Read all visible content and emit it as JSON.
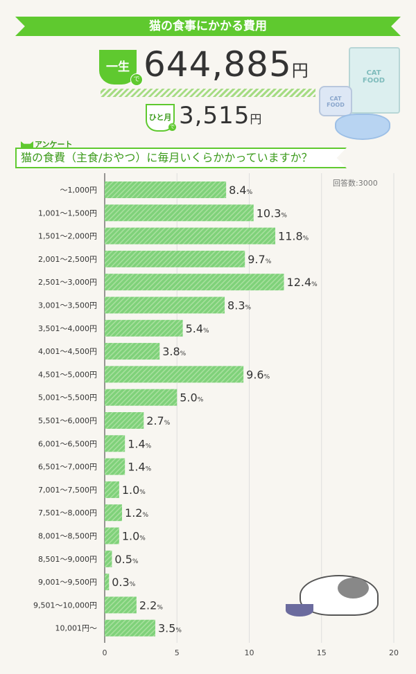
{
  "header": {
    "title": "猫の食事にかかる費用"
  },
  "lifetime": {
    "badge_main": "一生",
    "badge_suffix": "で",
    "amount": "644,885",
    "unit": "円"
  },
  "monthly": {
    "badge_main": "ひと月",
    "badge_suffix": "で",
    "amount": "3,515",
    "unit": "円"
  },
  "illustration": {
    "can_label": "CAT FOOD",
    "bag_label": "CAT FOOD"
  },
  "survey": {
    "tag": "アンケート",
    "question": "猫の食費（主食/おやつ）に毎月いくらかかっていますか？"
  },
  "colors": {
    "accent": "#5fc92f",
    "bar": "#7fd17a",
    "bar_stripe": "#a8e09e"
  },
  "chart_data": {
    "type": "bar",
    "orientation": "horizontal",
    "title": "猫の食費（主食/おやつ）に毎月いくらかかっていますか？",
    "note": "回答数:3000",
    "categories": [
      "〜1,000円",
      "1,001〜1,500円",
      "1,501〜2,000円",
      "2,001〜2,500円",
      "2,501〜3,000円",
      "3,001〜3,500円",
      "3,501〜4,000円",
      "4,001〜4,500円",
      "4,501〜5,000円",
      "5,001〜5,500円",
      "5,501〜6,000円",
      "6,001〜6,500円",
      "6,501〜7,000円",
      "7,001〜7,500円",
      "7,501〜8,000円",
      "8,001〜8,500円",
      "8,501〜9,000円",
      "9,001〜9,500円",
      "9,501〜10,000円",
      "10,001円〜"
    ],
    "values": [
      8.4,
      10.3,
      11.8,
      9.7,
      12.4,
      8.3,
      5.4,
      3.8,
      9.6,
      5.0,
      2.7,
      1.4,
      1.4,
      1.0,
      1.2,
      1.0,
      0.5,
      0.3,
      2.2,
      3.5
    ],
    "value_labels": [
      "8.4",
      "10.3",
      "11.8",
      "9.7",
      "12.4",
      "8.3",
      "5.4",
      "3.8",
      "9.6",
      "5.0",
      "2.7",
      "1.4",
      "1.4",
      "1.0",
      "1.2",
      "1.0",
      "0.5",
      "0.3",
      "2.2",
      "3.5"
    ],
    "unit": "%",
    "xlim": [
      0,
      20
    ],
    "xticks": [
      "0",
      "5",
      "10",
      "15",
      "20"
    ],
    "grid": true
  }
}
